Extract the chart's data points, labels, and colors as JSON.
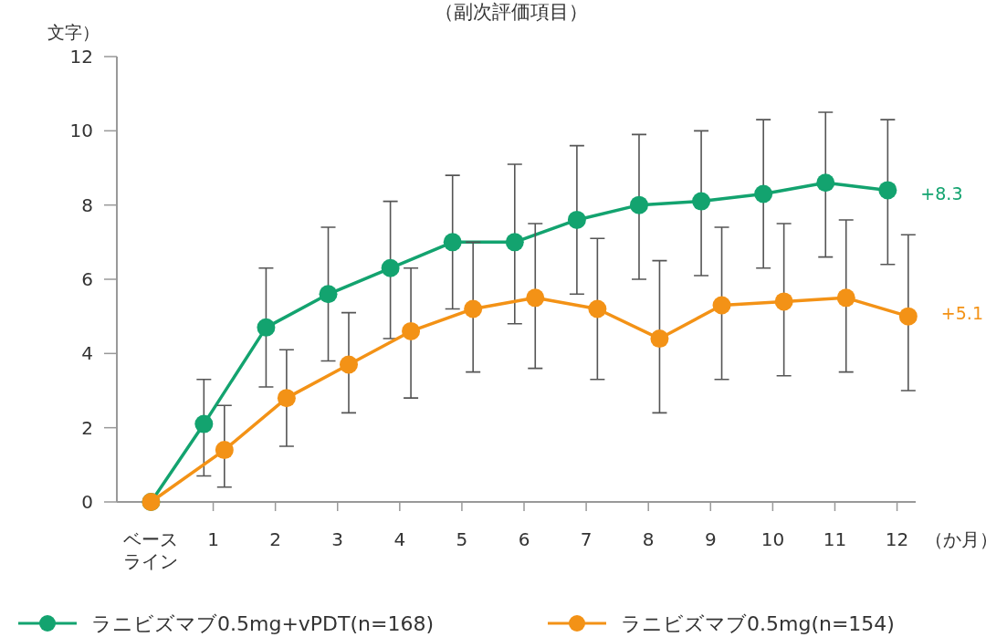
{
  "chart_data": {
    "type": "line",
    "title": "（副次評価項目）",
    "ylabel": "文字）",
    "xlabel": "（か月）",
    "xlim": [
      -0.55,
      12.3
    ],
    "xticks": [
      {
        "value": 0,
        "label": "ベースライン"
      },
      1,
      2,
      3,
      4,
      5,
      6,
      7,
      8,
      9,
      10,
      11,
      12
    ],
    "ylim": [
      0,
      12
    ],
    "yticks": [
      0,
      2,
      4,
      6,
      8,
      10,
      12
    ],
    "grid": false,
    "legend": "bottom",
    "marker": "circle",
    "line_style": "solid",
    "series": [
      {
        "name": "ラニビズマブ0.5mg+vPDT(n=168)",
        "color": "#13a36f",
        "x": [
          0,
          0.85,
          1.85,
          2.85,
          3.85,
          4.85,
          5.85,
          6.85,
          7.85,
          8.85,
          9.85,
          10.85,
          11.85
        ],
        "values": [
          0,
          2.1,
          4.7,
          5.6,
          6.3,
          7.0,
          7.0,
          7.6,
          8.0,
          8.1,
          8.3,
          8.6,
          8.4
        ],
        "errors": [
          null,
          [
            0.7,
            3.3
          ],
          [
            3.1,
            6.3
          ],
          [
            3.8,
            7.4
          ],
          [
            4.4,
            8.1
          ],
          [
            5.2,
            8.8
          ],
          [
            4.8,
            9.1
          ],
          [
            5.6,
            9.6
          ],
          [
            6.0,
            9.9
          ],
          [
            6.1,
            10.0
          ],
          [
            6.3,
            10.3
          ],
          [
            6.6,
            10.5
          ],
          [
            6.4,
            10.3
          ]
        ]
      },
      {
        "name": "ラニビズマブ0.5mg(n=154)",
        "color": "#f39216",
        "x": [
          0,
          1.18,
          2.18,
          3.18,
          4.18,
          5.18,
          6.18,
          7.18,
          8.18,
          9.18,
          10.18,
          11.18,
          12.18
        ],
        "values": [
          0,
          1.4,
          2.8,
          3.7,
          4.6,
          5.2,
          5.5,
          5.2,
          4.4,
          5.3,
          5.4,
          5.5,
          5.0
        ],
        "errors": [
          null,
          [
            0.4,
            2.6
          ],
          [
            1.5,
            4.1
          ],
          [
            2.4,
            5.1
          ],
          [
            2.8,
            6.3
          ],
          [
            3.5,
            7.0
          ],
          [
            3.6,
            7.5
          ],
          [
            3.3,
            7.1
          ],
          [
            2.4,
            6.5
          ],
          [
            3.3,
            7.4
          ],
          [
            3.4,
            7.5
          ],
          [
            3.5,
            7.6
          ],
          [
            3.0,
            7.2
          ]
        ]
      }
    ],
    "annotations": [
      {
        "text": "+8.3",
        "x": 11.85,
        "y": 8.3
      },
      {
        "text": "+5.1",
        "x": 12.18,
        "y": 5.1
      }
    ]
  }
}
